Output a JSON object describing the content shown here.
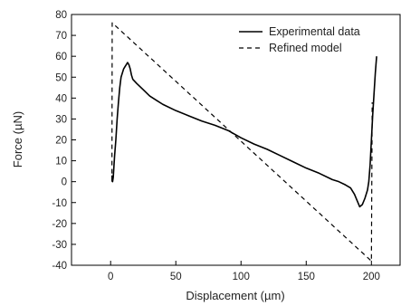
{
  "chart_data": {
    "type": "line",
    "xlabel": "Displacement (µm)",
    "ylabel": "Force (µN)",
    "xlim": [
      -30,
      222
    ],
    "ylim": [
      -40,
      80
    ],
    "x_ticks": [
      0,
      50,
      100,
      150,
      200
    ],
    "y_ticks": [
      -40,
      -30,
      -20,
      -10,
      0,
      10,
      20,
      30,
      40,
      50,
      60,
      70,
      80
    ],
    "grid": false,
    "legend_position": "top-right",
    "series": [
      {
        "name": "Experimental data",
        "style": "solid",
        "color": "#000000",
        "points": [
          [
            1,
            3
          ],
          [
            1.5,
            0
          ],
          [
            2,
            2
          ],
          [
            3,
            12
          ],
          [
            4,
            20
          ],
          [
            5,
            30
          ],
          [
            6,
            38
          ],
          [
            7,
            45
          ],
          [
            8,
            50
          ],
          [
            9,
            52
          ],
          [
            10,
            54
          ],
          [
            11,
            55
          ],
          [
            12,
            56
          ],
          [
            13,
            57
          ],
          [
            14,
            56
          ],
          [
            15,
            54
          ],
          [
            16,
            51
          ],
          [
            17,
            49
          ],
          [
            20,
            47
          ],
          [
            25,
            44
          ],
          [
            30,
            41
          ],
          [
            35,
            39
          ],
          [
            40,
            37
          ],
          [
            50,
            34
          ],
          [
            60,
            31.5
          ],
          [
            70,
            29
          ],
          [
            80,
            27
          ],
          [
            90,
            24.5
          ],
          [
            100,
            21
          ],
          [
            110,
            18
          ],
          [
            120,
            15.5
          ],
          [
            130,
            12.5
          ],
          [
            140,
            9.5
          ],
          [
            150,
            6.5
          ],
          [
            160,
            4
          ],
          [
            170,
            1
          ],
          [
            175,
            0
          ],
          [
            180,
            -1.5
          ],
          [
            184,
            -3
          ],
          [
            187,
            -6
          ],
          [
            189,
            -9
          ],
          [
            191,
            -12
          ],
          [
            193,
            -11
          ],
          [
            195,
            -8
          ],
          [
            197,
            -4
          ],
          [
            198,
            0
          ],
          [
            199,
            8
          ],
          [
            200,
            20
          ],
          [
            201,
            32
          ],
          [
            202,
            42
          ],
          [
            203,
            52
          ],
          [
            204,
            60
          ]
        ]
      },
      {
        "name": "Refined model",
        "style": "dashed",
        "color": "#000000",
        "points": [
          [
            1,
            0
          ],
          [
            1.2,
            76
          ],
          [
            200,
            -38
          ],
          [
            200.6,
            38
          ]
        ]
      }
    ]
  }
}
